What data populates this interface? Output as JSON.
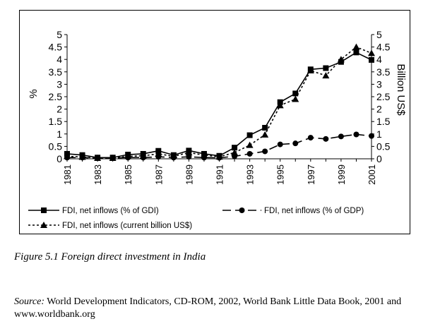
{
  "chart_data": {
    "type": "line",
    "x": [
      1981,
      1982,
      1983,
      1984,
      1985,
      1986,
      1987,
      1988,
      1989,
      1990,
      1991,
      1992,
      1993,
      1994,
      1995,
      1996,
      1997,
      1998,
      1999,
      2000,
      2001
    ],
    "x_tick_labels": [
      "1981",
      "1983",
      "1985",
      "1987",
      "1989",
      "1991",
      "1993",
      "1995",
      "1997",
      "1999",
      "2001"
    ],
    "y_left_label": "%",
    "y_right_label": "Billion US$",
    "y_ticks": [
      "0",
      "0.5",
      "1",
      "1.5",
      "2",
      "2.5",
      "3",
      "3.5",
      "4",
      "4.5",
      "5"
    ],
    "ylim": [
      0,
      5
    ],
    "grid": false,
    "legend_position": "bottom",
    "series": [
      {
        "name": "FDI, net inflows (% of GDI)",
        "axis": "left",
        "style": "solid",
        "marker": "square",
        "values": [
          0.2,
          0.15,
          0.05,
          0.05,
          0.17,
          0.2,
          0.32,
          0.15,
          0.33,
          0.2,
          0.12,
          0.45,
          0.95,
          1.25,
          2.28,
          2.63,
          3.6,
          3.65,
          3.9,
          4.28,
          3.98
        ]
      },
      {
        "name": "FDI, net inflows (% of GDP)",
        "axis": "left",
        "style": "dashed",
        "marker": "circle",
        "values": [
          0.05,
          0.05,
          0.03,
          0.03,
          0.05,
          0.05,
          0.08,
          0.05,
          0.08,
          0.05,
          0.04,
          0.1,
          0.2,
          0.3,
          0.58,
          0.62,
          0.85,
          0.8,
          0.9,
          0.98,
          0.92
        ]
      },
      {
        "name": "FDI, net inflows (current billion US$)",
        "axis": "right",
        "style": "dotted",
        "marker": "triangle",
        "values": [
          0.1,
          0.07,
          0.03,
          0.03,
          0.1,
          0.12,
          0.2,
          0.1,
          0.25,
          0.15,
          0.08,
          0.25,
          0.55,
          0.97,
          2.15,
          2.4,
          3.55,
          3.35,
          4.0,
          4.5,
          4.25
        ]
      }
    ]
  },
  "caption": "Figure 5.1 Foreign direct investment in India",
  "source": {
    "prefix": "Source:",
    "text": " World Development Indicators, CD-ROM, 2002, World Bank Little Data Book, 2001 and www.worldbank.org"
  }
}
